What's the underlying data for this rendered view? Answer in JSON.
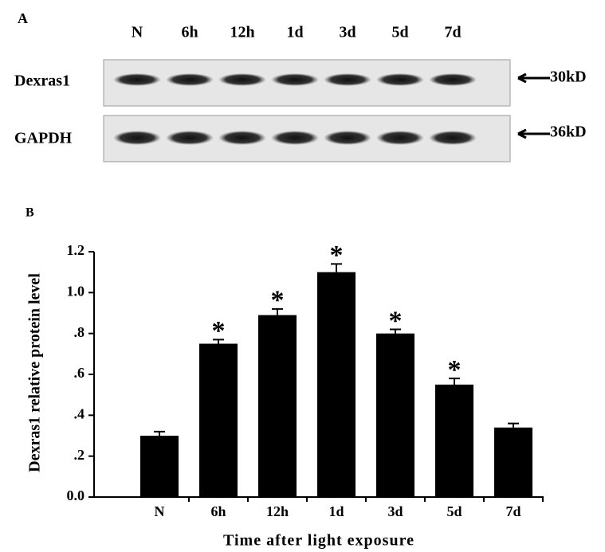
{
  "blot": {
    "panel_label": "A",
    "lanes": [
      "N",
      "6h",
      "12h",
      "1d",
      "3d",
      "5d",
      "7d"
    ],
    "rows": [
      {
        "name": "Dexras1",
        "size": "30kD"
      },
      {
        "name": "GAPDH",
        "size": "36kD"
      }
    ]
  },
  "chart_data": {
    "type": "bar",
    "panel_label": "B",
    "x_label": "Time after light exposure",
    "y_label": "Dexras1 relative protein level",
    "categories": [
      "N",
      "6h",
      "12h",
      "1d",
      "3d",
      "5d",
      "7d"
    ],
    "values": [
      0.3,
      0.75,
      0.89,
      1.1,
      0.8,
      0.55,
      0.34
    ],
    "errors": [
      0.02,
      0.02,
      0.03,
      0.04,
      0.02,
      0.03,
      0.02
    ],
    "significance": [
      null,
      "*",
      "*",
      "*",
      "*",
      "*",
      null
    ],
    "color": "#000000",
    "ylim": [
      0,
      1.2
    ],
    "yticks": [
      {
        "value": 0,
        "label": "0.0"
      },
      {
        "value": 0.2,
        "label": ".2"
      },
      {
        "value": 0.4,
        "label": ".4"
      },
      {
        "value": 0.6,
        "label": ".6"
      },
      {
        "value": 0.8,
        "label": ".8"
      },
      {
        "value": 1.0,
        "label": "1.0"
      },
      {
        "value": 1.2,
        "label": "1.2"
      }
    ],
    "grid": false
  }
}
